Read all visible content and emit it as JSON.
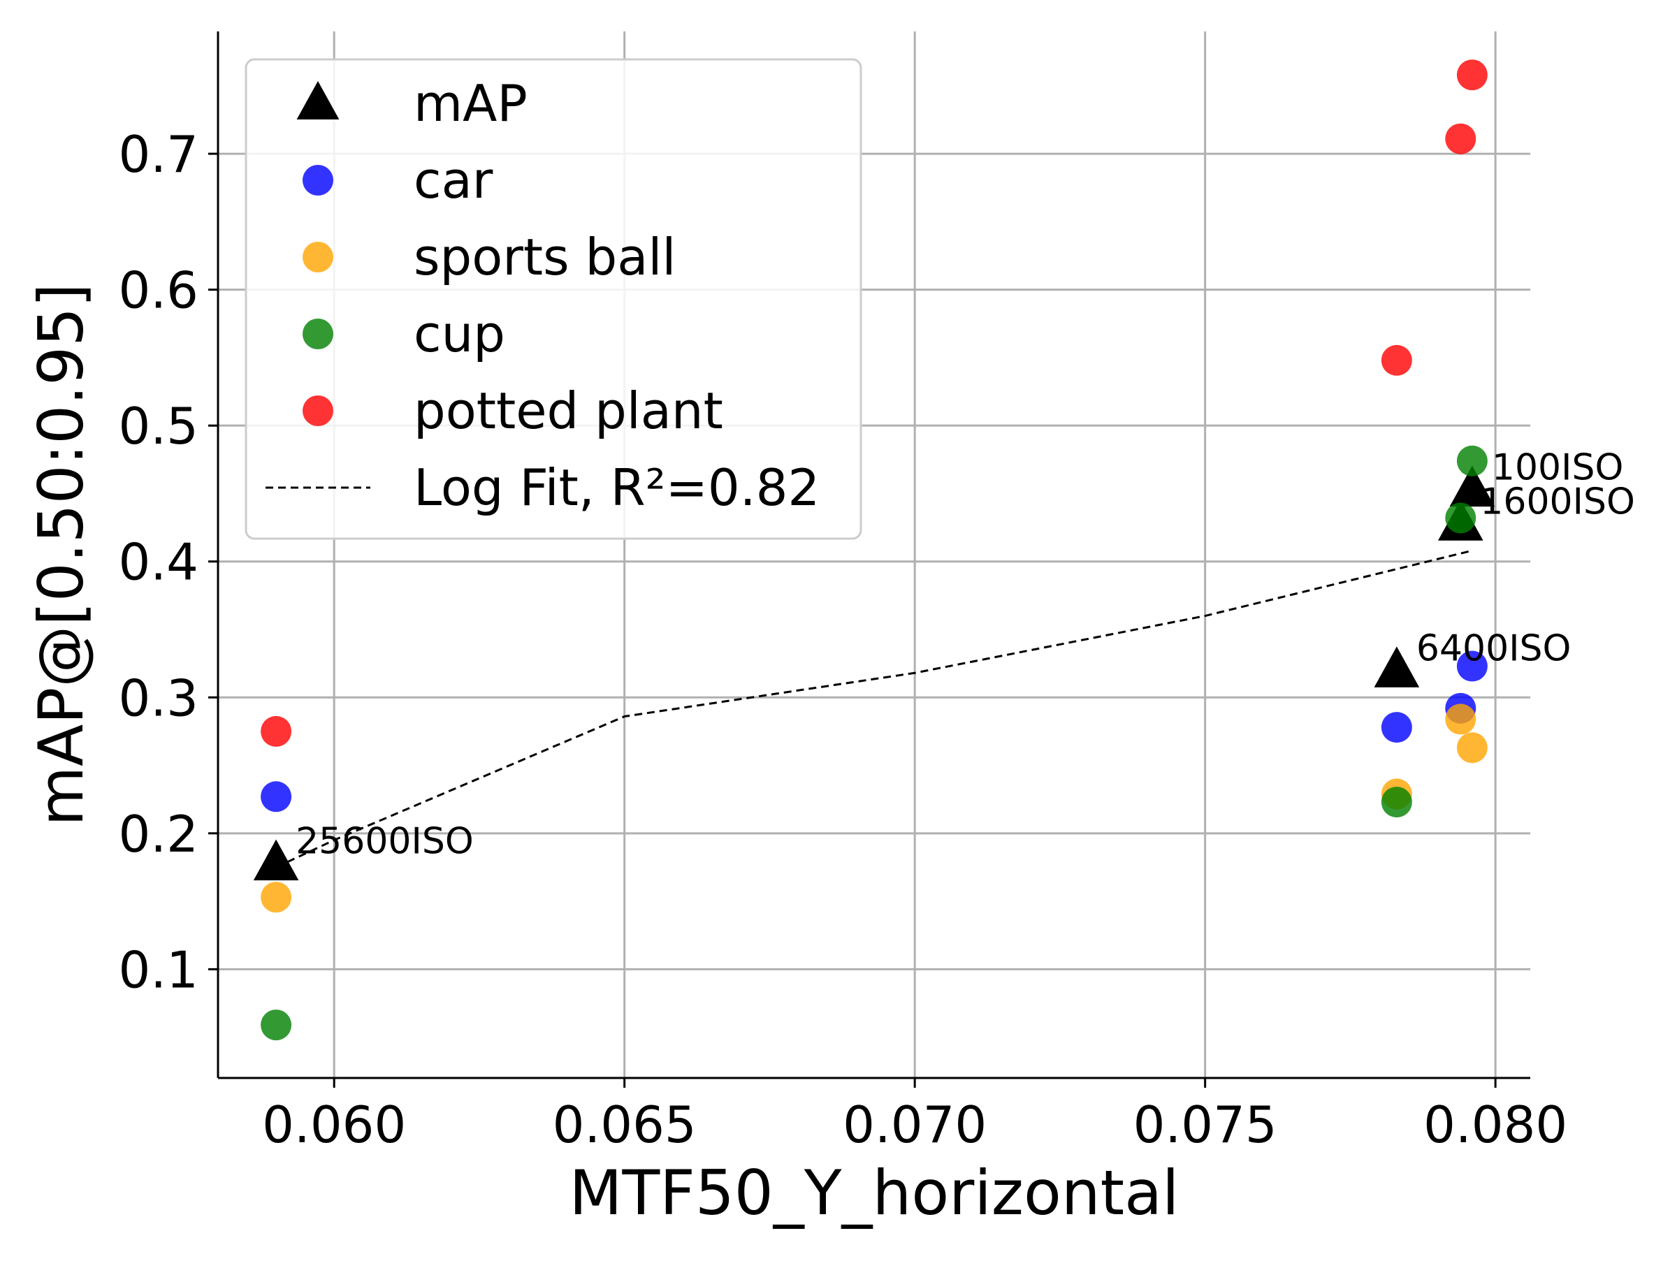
{
  "chart_data": {
    "type": "scatter",
    "title": "",
    "xlabel": "MTF50_Y_horizontal",
    "ylabel": "mAP@[0.50:0.95]",
    "xlim": [
      0.058,
      0.0806
    ],
    "ylim": [
      0.02,
      0.79
    ],
    "xticks": [
      0.06,
      0.065,
      0.07,
      0.075,
      0.08
    ],
    "xtick_labels": [
      "0.060",
      "0.065",
      "0.070",
      "0.075",
      "0.080"
    ],
    "yticks": [
      0.1,
      0.2,
      0.3,
      0.4,
      0.5,
      0.6,
      0.7
    ],
    "ytick_labels": [
      "0.1",
      "0.2",
      "0.3",
      "0.4",
      "0.5",
      "0.6",
      "0.7"
    ],
    "grid": true,
    "legend_position": "top-left",
    "series": [
      {
        "name": "mAP",
        "marker": "triangle",
        "color": "#000000",
        "points": [
          [
            0.059,
            0.178
          ],
          [
            0.0783,
            0.32
          ],
          [
            0.0794,
            0.428
          ],
          [
            0.0796,
            0.453
          ]
        ]
      },
      {
        "name": "car",
        "marker": "circle",
        "color": "#0000ff",
        "points": [
          [
            0.059,
            0.227
          ],
          [
            0.0783,
            0.278
          ],
          [
            0.0794,
            0.292
          ],
          [
            0.0796,
            0.323
          ]
        ]
      },
      {
        "name": "sports ball",
        "marker": "circle",
        "color": "#ffa500",
        "points": [
          [
            0.059,
            0.153
          ],
          [
            0.0783,
            0.229
          ],
          [
            0.0794,
            0.284
          ],
          [
            0.0796,
            0.263
          ]
        ]
      },
      {
        "name": "cup",
        "marker": "circle",
        "color": "#008000",
        "points": [
          [
            0.059,
            0.059
          ],
          [
            0.0783,
            0.223
          ],
          [
            0.0794,
            0.432
          ],
          [
            0.0796,
            0.474
          ]
        ]
      },
      {
        "name": "potted plant",
        "marker": "circle",
        "color": "#ff0000",
        "points": [
          [
            0.059,
            0.275
          ],
          [
            0.0783,
            0.548
          ],
          [
            0.0794,
            0.711
          ],
          [
            0.0796,
            0.758
          ]
        ]
      },
      {
        "name": "Log Fit, R²=0.82",
        "marker": "dashed-line",
        "color": "#000000",
        "points": [
          [
            0.059,
            0.175
          ],
          [
            0.06,
            0.195
          ],
          [
            0.065,
            0.286
          ],
          [
            0.07,
            0.318
          ],
          [
            0.075,
            0.36
          ],
          [
            0.0796,
            0.408
          ]
        ]
      }
    ],
    "annotations": [
      {
        "text": "25600ISO",
        "x": 0.059,
        "y": 0.178
      },
      {
        "text": "6400ISO",
        "x": 0.0783,
        "y": 0.32
      },
      {
        "text": "1600ISO",
        "x": 0.0794,
        "y": 0.428
      },
      {
        "text": "100ISO",
        "x": 0.0796,
        "y": 0.453
      }
    ]
  }
}
